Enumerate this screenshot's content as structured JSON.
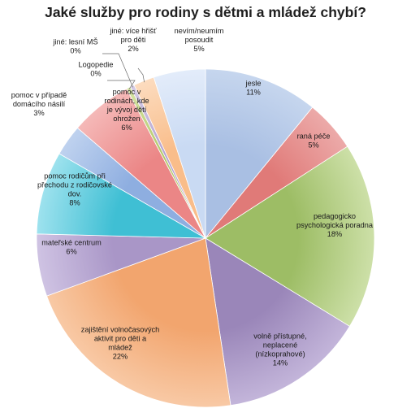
{
  "chart_data": {
    "type": "pie",
    "title": "Jaké služby pro rodiny s dětmi a mládež chybí?",
    "start_angle_deg": 0,
    "direction": "clockwise",
    "slices": [
      {
        "label_lines": [
          "jesle"
        ],
        "percent_label": "11%",
        "value": 11,
        "color": "#a9bfe3",
        "edge": "#c6d6ee"
      },
      {
        "label_lines": [
          "raná péče"
        ],
        "percent_label": "5%",
        "value": 5,
        "color": "#e07a78",
        "edge": "#ecaaa9"
      },
      {
        "label_lines": [
          "pedagogicko",
          "psychologická poradna"
        ],
        "percent_label": "18%",
        "value": 18,
        "color": "#9dbd65",
        "edge": "#cde0a8"
      },
      {
        "label_lines": [
          "volně přístupné,",
          "neplacené",
          "(nízkoprahové)"
        ],
        "percent_label": "14%",
        "value": 14,
        "color": "#9a86b9",
        "edge": "#c3b5da"
      },
      {
        "label_lines": [
          "zajištění volnočasových",
          "aktivit pro děti a",
          "mládež"
        ],
        "percent_label": "22%",
        "value": 22,
        "color": "#f2a56e",
        "edge": "#f8c9a5"
      },
      {
        "label_lines": [
          "mateřské centrum"
        ],
        "percent_label": "6%",
        "value": 6,
        "color": "#a996c7",
        "edge": "#cfc3e3"
      },
      {
        "label_lines": [
          "pomoc rodičům při",
          "přechodu z rodičovské",
          "dov."
        ],
        "percent_label": "8%",
        "value": 8,
        "color": "#3fbfd4",
        "edge": "#9ee2ee"
      },
      {
        "label_lines": [
          "pomoc v případě",
          "domácího násilí"
        ],
        "percent_label": "3%",
        "value": 3,
        "color": "#8eaee0",
        "edge": "#bfd2ef"
      },
      {
        "label_lines": [
          "pomoc v",
          "rodinách, kde",
          "je vývoj dětí",
          "ohrožen"
        ],
        "percent_label": "6%",
        "value": 6,
        "color": "#eb8686",
        "edge": "#f5b9b8"
      },
      {
        "label_lines": [
          "Logopedie"
        ],
        "percent_label": "0%",
        "value": 0.4,
        "color": "#b3c86a",
        "edge": "#d6e3a6"
      },
      {
        "label_lines": [
          "jiné: lesní MŠ"
        ],
        "percent_label": "0%",
        "value": 0.4,
        "color": "#b4a2cf",
        "edge": "#d5cbe6"
      },
      {
        "label_lines": [
          "jiné: více hřišť",
          "pro děti"
        ],
        "percent_label": "2%",
        "value": 2,
        "color": "#f9bd8a",
        "edge": "#fcdcbf"
      },
      {
        "label_lines": [
          "nevím/neumím",
          "posoudit"
        ],
        "percent_label": "5%",
        "value": 5,
        "color": "#c9daf3",
        "edge": "#e3ecfa"
      }
    ]
  }
}
